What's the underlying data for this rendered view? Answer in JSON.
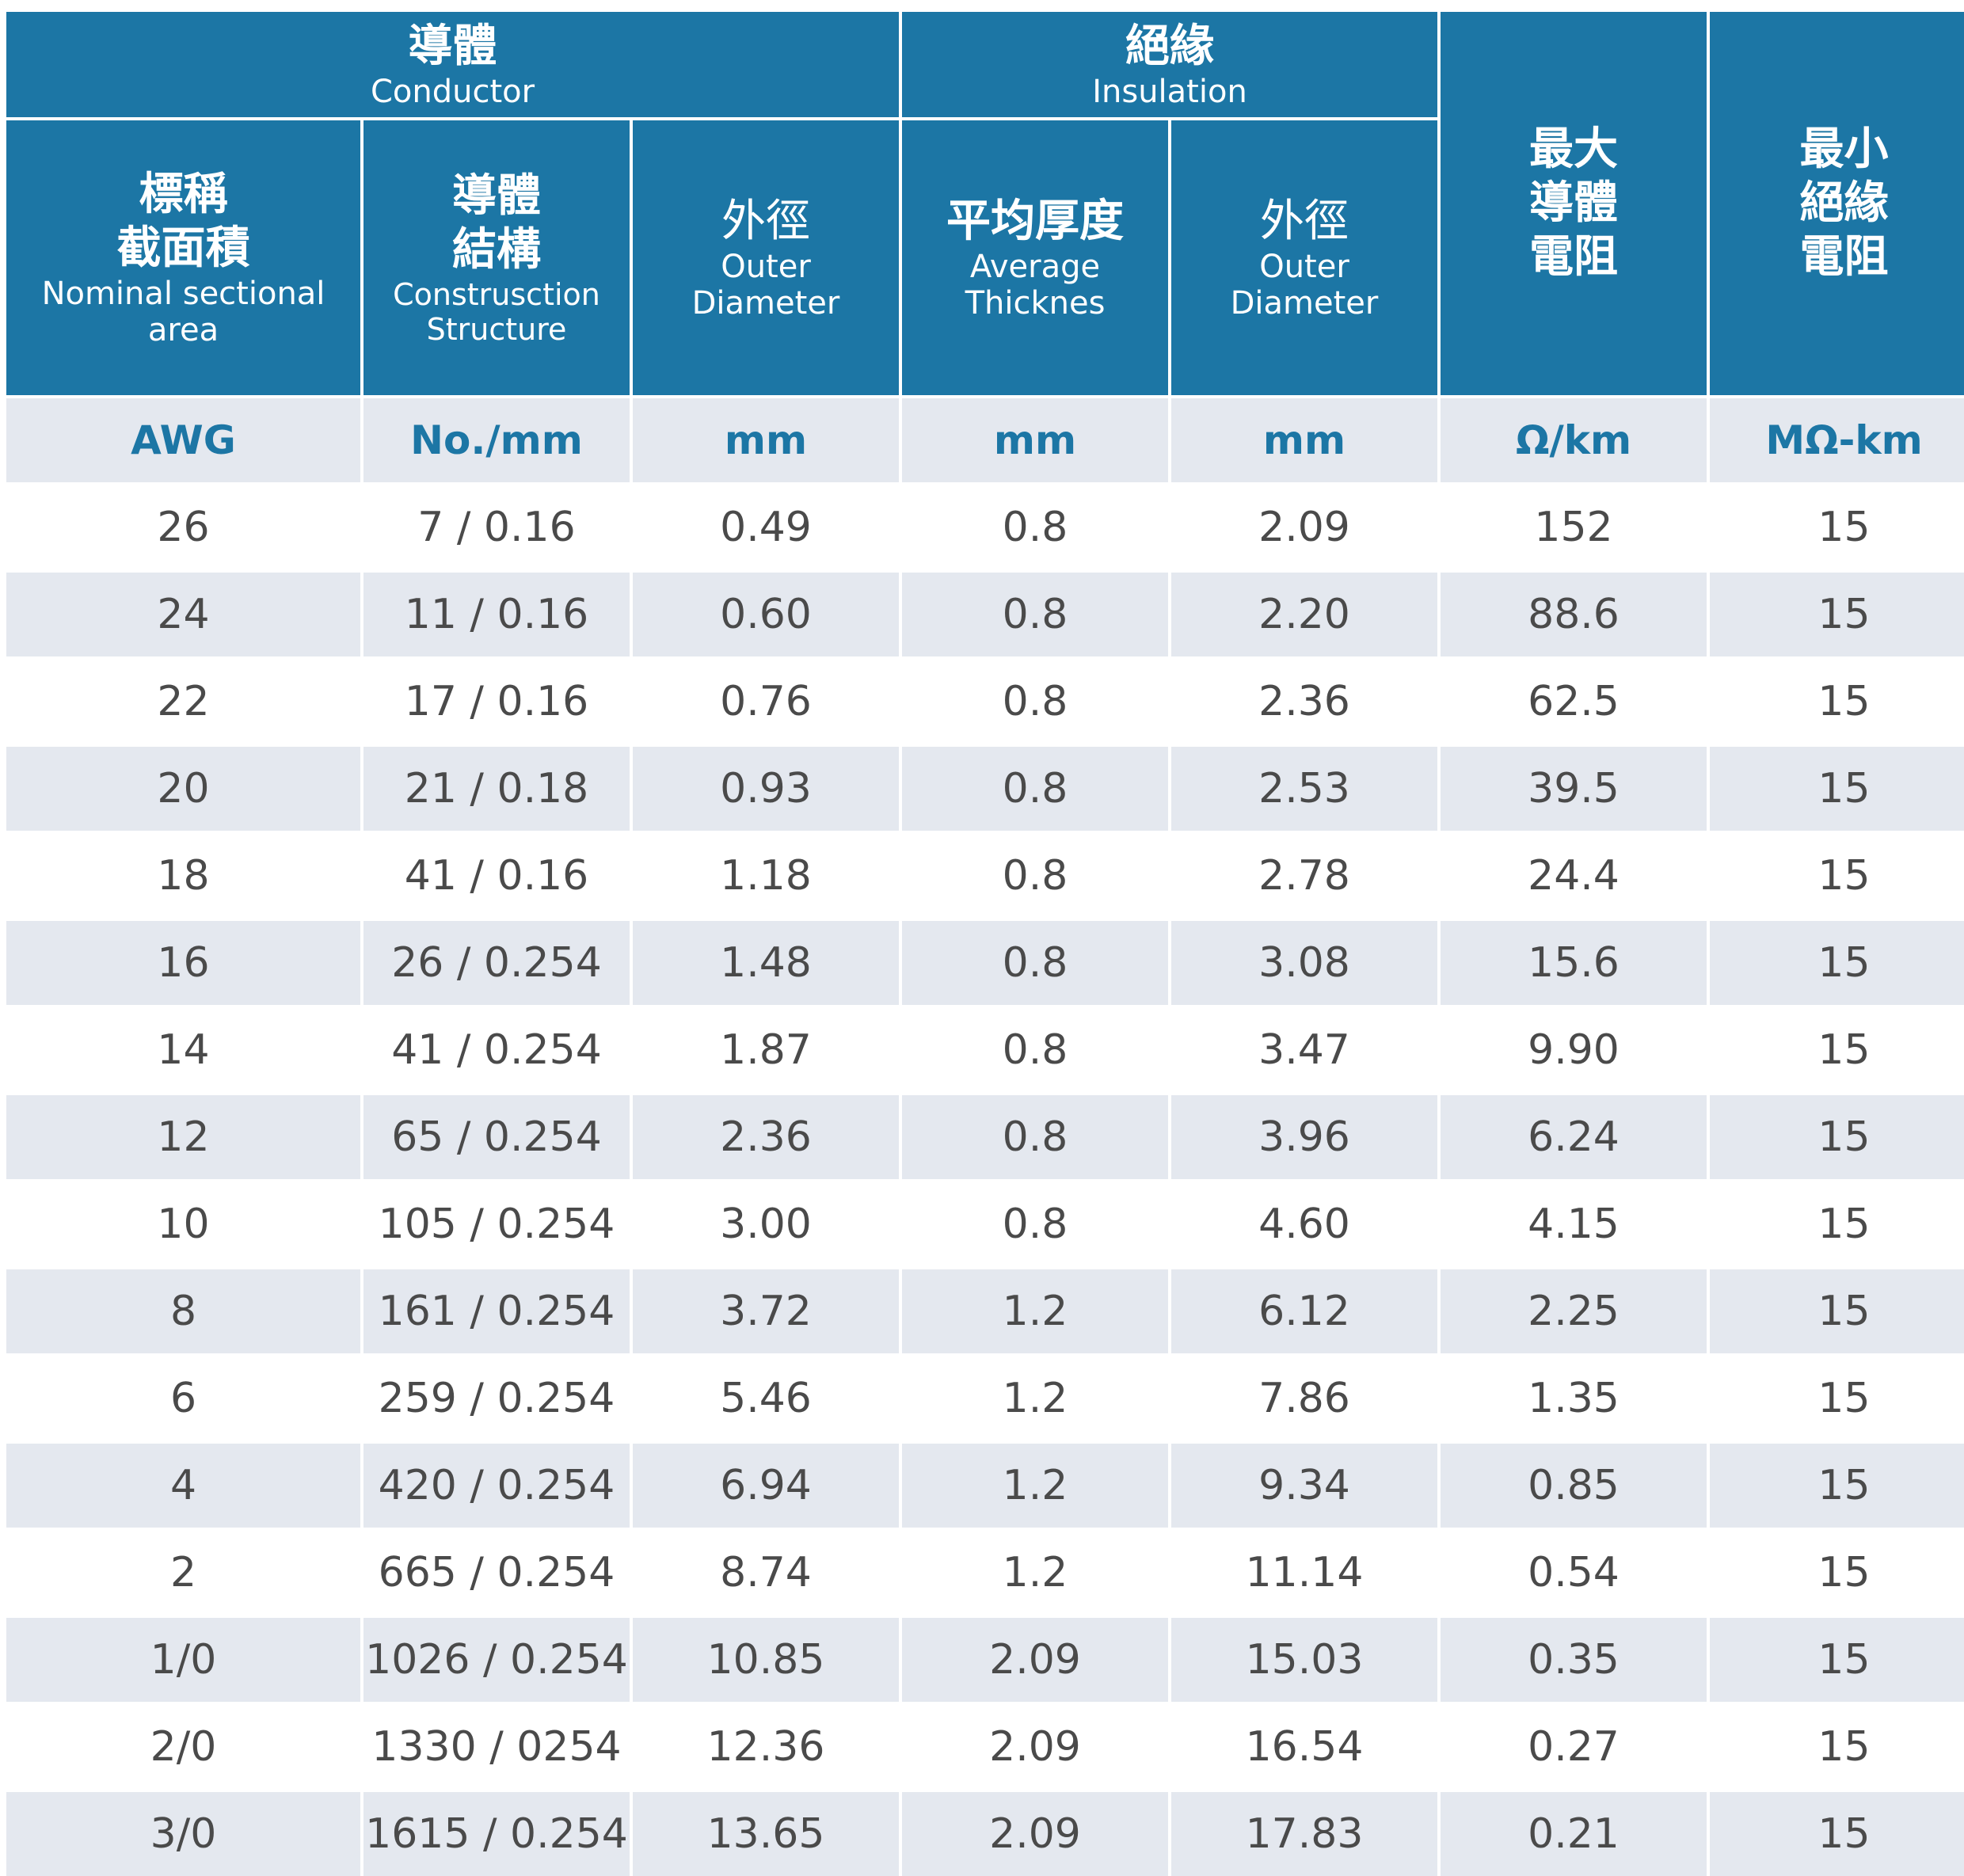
{
  "header": {
    "conductor": {
      "zh": "導體",
      "en": "Conductor"
    },
    "insulation": {
      "zh": "絕緣",
      "en": "Insulation"
    },
    "columns": [
      {
        "zh": [
          "標稱",
          "截面積"
        ],
        "en": [
          "Nominal sectional",
          "area"
        ]
      },
      {
        "zh": [
          "導體",
          "結構"
        ],
        "en": [
          "Construsction",
          "Structure"
        ]
      },
      {
        "zh": [
          "外徑"
        ],
        "en": [
          "Outer",
          "Diameter"
        ]
      },
      {
        "zh": [
          "平均厚度"
        ],
        "en": [
          "Average",
          "Thicknes"
        ]
      },
      {
        "zh": [
          "外徑"
        ],
        "en": [
          "Outer",
          "Diameter"
        ]
      },
      {
        "zh": [
          "最大",
          "導體",
          "電阻"
        ],
        "en": []
      },
      {
        "zh": [
          "最小",
          "絕緣",
          "電阻"
        ],
        "en": []
      }
    ]
  },
  "units": [
    "AWG",
    "No./mm",
    "mm",
    "mm",
    "mm",
    "Ω/km",
    "MΩ-km"
  ],
  "rows": [
    [
      "26",
      "7 / 0.16",
      "0.49",
      "0.8",
      "2.09",
      "152",
      "15"
    ],
    [
      "24",
      "11 / 0.16",
      "0.60",
      "0.8",
      "2.20",
      "88.6",
      "15"
    ],
    [
      "22",
      "17 / 0.16",
      "0.76",
      "0.8",
      "2.36",
      "62.5",
      "15"
    ],
    [
      "20",
      "21 / 0.18",
      "0.93",
      "0.8",
      "2.53",
      "39.5",
      "15"
    ],
    [
      "18",
      "41 / 0.16",
      "1.18",
      "0.8",
      "2.78",
      "24.4",
      "15"
    ],
    [
      "16",
      "26 / 0.254",
      "1.48",
      "0.8",
      "3.08",
      "15.6",
      "15"
    ],
    [
      "14",
      "41 / 0.254",
      "1.87",
      "0.8",
      "3.47",
      "9.90",
      "15"
    ],
    [
      "12",
      "65 / 0.254",
      "2.36",
      "0.8",
      "3.96",
      "6.24",
      "15"
    ],
    [
      "10",
      "105 / 0.254",
      "3.00",
      "0.8",
      "4.60",
      "4.15",
      "15"
    ],
    [
      "8",
      "161 / 0.254",
      "3.72",
      "1.2",
      "6.12",
      "2.25",
      "15"
    ],
    [
      "6",
      "259 / 0.254",
      "5.46",
      "1.2",
      "7.86",
      "1.35",
      "15"
    ],
    [
      "4",
      "420 / 0.254",
      "6.94",
      "1.2",
      "9.34",
      "0.85",
      "15"
    ],
    [
      "2",
      "665 / 0.254",
      "8.74",
      "1.2",
      "11.14",
      "0.54",
      "15"
    ],
    [
      "1/0",
      "1026 / 0.254",
      "10.85",
      "2.09",
      "15.03",
      "0.35",
      "15"
    ],
    [
      "2/0",
      "1330 / 0254",
      "12.36",
      "2.09",
      "16.54",
      "0.27",
      "15"
    ],
    [
      "3/0",
      "1615 / 0.254",
      "13.65",
      "2.09",
      "17.83",
      "0.21",
      "15"
    ]
  ]
}
